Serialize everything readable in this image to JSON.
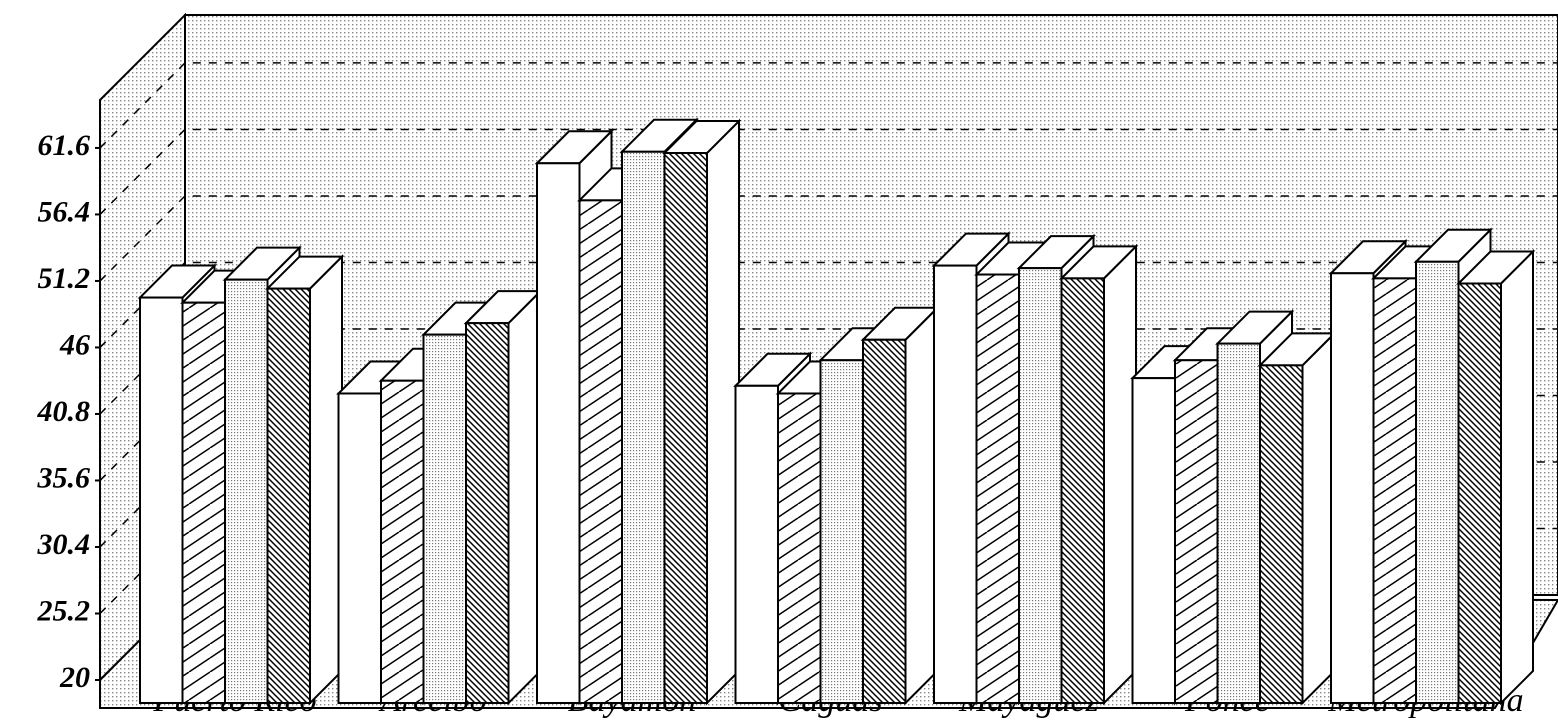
{
  "chart_data": {
    "type": "bar3d",
    "categories": [
      "Puerto Rico",
      "Arecibo",
      "Bayamón",
      "Caguas",
      "Mayagüez",
      "Ponce",
      "Metropolitana"
    ],
    "series": [
      {
        "color": "#ffffff",
        "pattern": "none",
        "values": [
          51.7,
          44.2,
          62.2,
          44.8,
          54.2,
          45.4,
          53.6
        ]
      },
      {
        "color": "#ffffff",
        "pattern": "hatch-up",
        "values": [
          51.3,
          45.2,
          59.3,
          44.2,
          53.5,
          46.8,
          53.2
        ]
      },
      {
        "color": "#ffffff",
        "pattern": "dots",
        "values": [
          53.1,
          48.8,
          63.1,
          46.8,
          54.0,
          48.1,
          54.5
        ]
      },
      {
        "color": "#ffffff",
        "pattern": "hatch-down",
        "values": [
          52.4,
          49.7,
          63.0,
          48.4,
          53.2,
          46.4,
          52.8
        ]
      }
    ],
    "ylim": [
      20,
      66.8
    ],
    "yticks": [
      20,
      25.2,
      30.4,
      35.6,
      40.8,
      46,
      51.2,
      56.4,
      61.6
    ],
    "grid": true
  }
}
